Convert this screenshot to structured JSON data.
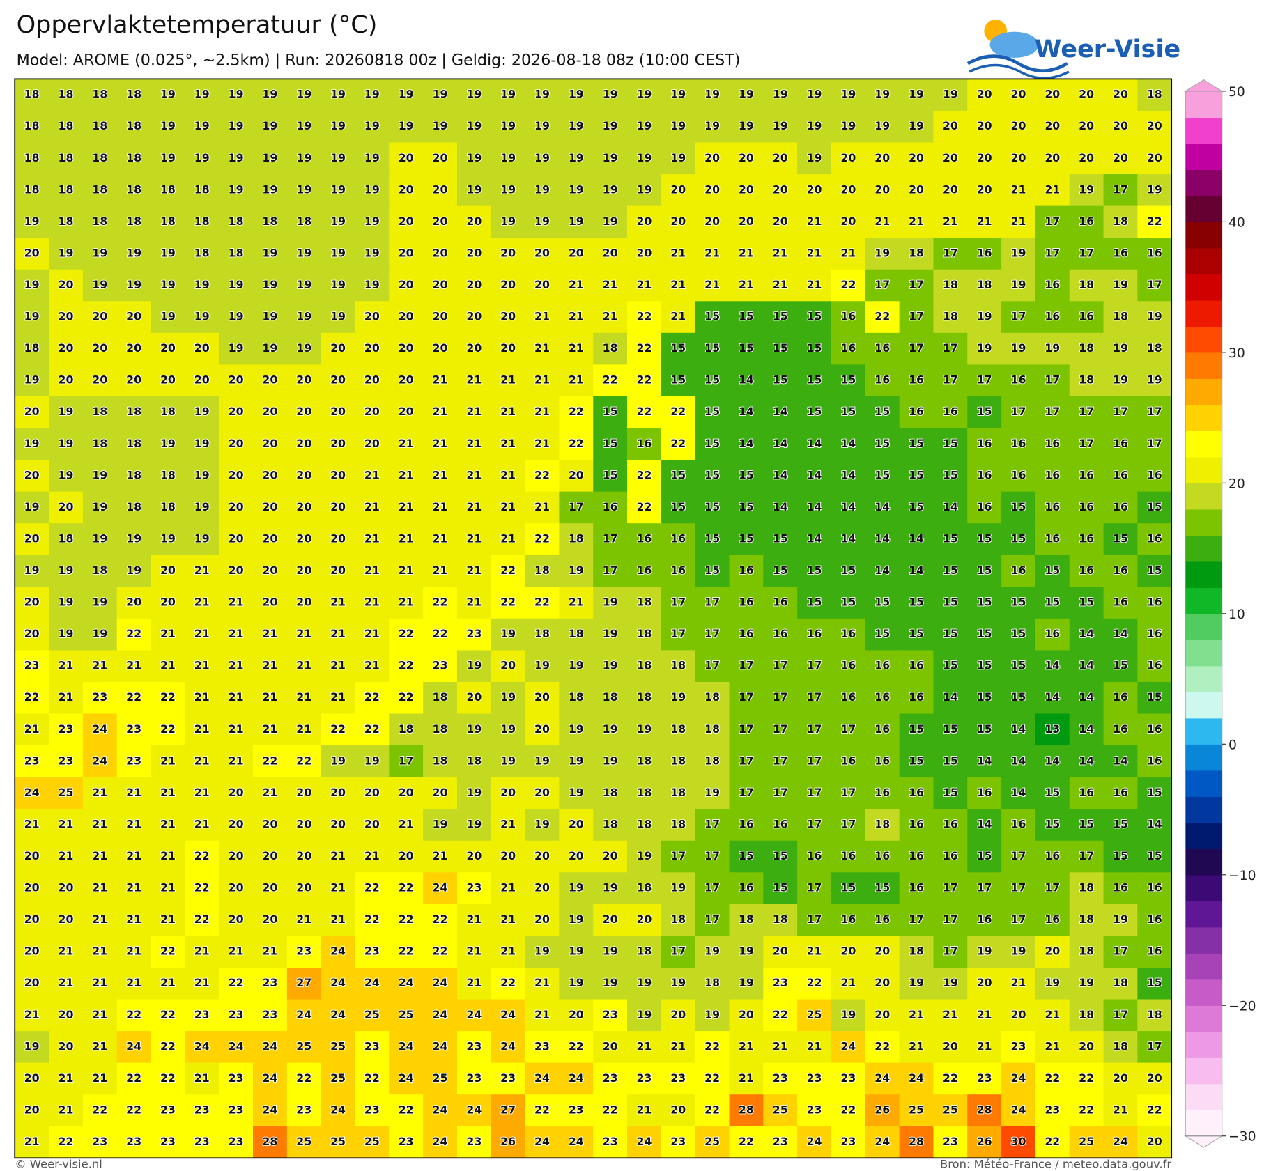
{
  "header": {
    "title": "Oppervlaktetemperatuur (°C)",
    "subtitle": "Model: AROME (0.025°, ~2.5km)  |  Run: 20260818 00z  |  Geldig: 2026-08-18 08z (10:00 CEST)",
    "logo": "Weer-Visie"
  },
  "grid": {
    "rows": [
      [
        18,
        18,
        18,
        18,
        19,
        19,
        19,
        19,
        19,
        19,
        19,
        19,
        19,
        19,
        19,
        19,
        19,
        19,
        19,
        19,
        19,
        19,
        19,
        19,
        19,
        19,
        19,
        19,
        20,
        20,
        20,
        20,
        20,
        18
      ],
      [
        18,
        18,
        18,
        18,
        19,
        19,
        19,
        19,
        19,
        19,
        19,
        19,
        19,
        19,
        19,
        19,
        19,
        19,
        19,
        19,
        19,
        19,
        19,
        19,
        19,
        19,
        19,
        20,
        20,
        20,
        20,
        20,
        20,
        20
      ],
      [
        18,
        18,
        18,
        18,
        19,
        19,
        19,
        19,
        19,
        19,
        19,
        20,
        20,
        19,
        19,
        19,
        19,
        19,
        19,
        19,
        20,
        20,
        20,
        19,
        20,
        20,
        20,
        20,
        20,
        20,
        20,
        20,
        20,
        20
      ],
      [
        18,
        18,
        18,
        18,
        18,
        18,
        19,
        19,
        19,
        19,
        19,
        20,
        20,
        19,
        19,
        19,
        19,
        19,
        19,
        20,
        20,
        20,
        20,
        20,
        20,
        20,
        20,
        20,
        20,
        21,
        21,
        19,
        17,
        19
      ],
      [
        19,
        18,
        18,
        18,
        18,
        18,
        18,
        18,
        18,
        19,
        19,
        20,
        20,
        20,
        19,
        19,
        19,
        19,
        20,
        20,
        20,
        20,
        20,
        21,
        20,
        21,
        21,
        21,
        21,
        21,
        17,
        16,
        18,
        22
      ],
      [
        20,
        19,
        19,
        19,
        19,
        18,
        18,
        19,
        19,
        19,
        19,
        20,
        20,
        20,
        20,
        20,
        20,
        20,
        20,
        21,
        21,
        21,
        21,
        21,
        21,
        19,
        18,
        17,
        16,
        19,
        17,
        17,
        16,
        16
      ],
      [
        19,
        20,
        19,
        19,
        19,
        19,
        19,
        19,
        19,
        19,
        19,
        20,
        20,
        20,
        20,
        20,
        21,
        21,
        21,
        21,
        21,
        21,
        21,
        21,
        22,
        17,
        17,
        18,
        18,
        19,
        16,
        18,
        19,
        17
      ],
      [
        19,
        20,
        20,
        20,
        19,
        19,
        19,
        19,
        19,
        19,
        20,
        20,
        20,
        20,
        20,
        21,
        21,
        21,
        22,
        21,
        15,
        15,
        15,
        15,
        16,
        22,
        17,
        18,
        19,
        17,
        16,
        16,
        18,
        19
      ],
      [
        18,
        20,
        20,
        20,
        20,
        20,
        19,
        19,
        19,
        20,
        20,
        20,
        20,
        20,
        20,
        21,
        21,
        18,
        22,
        15,
        15,
        15,
        15,
        15,
        16,
        16,
        17,
        17,
        19,
        19,
        19,
        18,
        19,
        18
      ],
      [
        19,
        20,
        20,
        20,
        20,
        20,
        20,
        20,
        20,
        20,
        20,
        20,
        21,
        21,
        21,
        21,
        21,
        22,
        22,
        15,
        15,
        14,
        15,
        15,
        15,
        16,
        16,
        17,
        17,
        16,
        17,
        18,
        19,
        19
      ],
      [
        20,
        19,
        18,
        18,
        18,
        19,
        20,
        20,
        20,
        20,
        20,
        20,
        21,
        21,
        21,
        21,
        22,
        15,
        22,
        22,
        15,
        14,
        14,
        15,
        15,
        15,
        16,
        16,
        15,
        17,
        17,
        17,
        17,
        17
      ],
      [
        19,
        19,
        18,
        18,
        19,
        19,
        20,
        20,
        20,
        20,
        20,
        21,
        21,
        21,
        21,
        21,
        22,
        15,
        16,
        22,
        15,
        14,
        14,
        14,
        14,
        15,
        15,
        15,
        16,
        16,
        16,
        17,
        16,
        17
      ],
      [
        20,
        19,
        19,
        18,
        18,
        19,
        20,
        20,
        20,
        20,
        21,
        21,
        21,
        21,
        21,
        22,
        20,
        15,
        22,
        15,
        15,
        15,
        14,
        14,
        14,
        15,
        15,
        15,
        16,
        16,
        16,
        16,
        16,
        16
      ],
      [
        19,
        20,
        19,
        18,
        18,
        19,
        20,
        20,
        20,
        20,
        21,
        21,
        21,
        21,
        21,
        21,
        17,
        16,
        22,
        15,
        15,
        15,
        14,
        14,
        14,
        14,
        15,
        14,
        16,
        15,
        16,
        16,
        16,
        15
      ],
      [
        20,
        18,
        19,
        19,
        19,
        19,
        20,
        20,
        20,
        20,
        21,
        21,
        21,
        21,
        21,
        22,
        18,
        17,
        16,
        16,
        15,
        15,
        15,
        14,
        14,
        14,
        14,
        15,
        15,
        15,
        16,
        16,
        15,
        16
      ],
      [
        19,
        19,
        18,
        19,
        20,
        21,
        20,
        20,
        20,
        20,
        21,
        21,
        21,
        21,
        22,
        18,
        19,
        17,
        16,
        16,
        15,
        16,
        15,
        15,
        15,
        14,
        14,
        15,
        15,
        16,
        15,
        16,
        16,
        15
      ],
      [
        20,
        19,
        19,
        20,
        20,
        21,
        21,
        20,
        20,
        21,
        21,
        21,
        22,
        21,
        22,
        22,
        21,
        19,
        18,
        17,
        17,
        16,
        16,
        15,
        15,
        15,
        15,
        15,
        15,
        15,
        15,
        15,
        16,
        16
      ],
      [
        20,
        19,
        19,
        22,
        21,
        21,
        21,
        21,
        21,
        21,
        21,
        22,
        22,
        23,
        19,
        18,
        18,
        19,
        18,
        17,
        17,
        16,
        16,
        16,
        16,
        15,
        15,
        15,
        15,
        15,
        16,
        14,
        14,
        16
      ],
      [
        23,
        21,
        21,
        21,
        21,
        21,
        21,
        21,
        21,
        21,
        21,
        22,
        23,
        19,
        20,
        19,
        19,
        19,
        18,
        18,
        17,
        17,
        17,
        17,
        16,
        16,
        16,
        15,
        15,
        15,
        14,
        14,
        15,
        16
      ],
      [
        22,
        21,
        23,
        22,
        22,
        21,
        21,
        21,
        21,
        21,
        22,
        22,
        18,
        20,
        19,
        20,
        18,
        18,
        18,
        19,
        18,
        17,
        17,
        17,
        16,
        16,
        16,
        14,
        15,
        15,
        14,
        14,
        16,
        15
      ],
      [
        21,
        23,
        24,
        23,
        22,
        21,
        21,
        21,
        21,
        22,
        22,
        18,
        18,
        19,
        19,
        20,
        19,
        19,
        19,
        18,
        18,
        17,
        17,
        17,
        17,
        16,
        15,
        15,
        15,
        14,
        13,
        14,
        16,
        16
      ],
      [
        23,
        23,
        24,
        23,
        21,
        21,
        21,
        22,
        22,
        19,
        19,
        17,
        18,
        18,
        19,
        19,
        19,
        19,
        18,
        18,
        18,
        17,
        17,
        17,
        16,
        16,
        15,
        15,
        14,
        14,
        14,
        14,
        14,
        16
      ],
      [
        24,
        25,
        21,
        21,
        21,
        21,
        20,
        21,
        20,
        20,
        20,
        20,
        20,
        19,
        20,
        20,
        19,
        18,
        18,
        18,
        19,
        17,
        17,
        17,
        17,
        16,
        16,
        15,
        16,
        14,
        15,
        16,
        16,
        15
      ],
      [
        21,
        21,
        21,
        21,
        21,
        21,
        20,
        20,
        20,
        20,
        20,
        21,
        19,
        19,
        21,
        19,
        20,
        18,
        18,
        18,
        17,
        16,
        16,
        17,
        17,
        18,
        16,
        16,
        14,
        16,
        15,
        15,
        15,
        14
      ],
      [
        20,
        21,
        21,
        21,
        21,
        22,
        20,
        20,
        20,
        21,
        21,
        20,
        21,
        20,
        20,
        20,
        20,
        20,
        19,
        17,
        17,
        15,
        15,
        16,
        16,
        16,
        16,
        16,
        15,
        17,
        16,
        17,
        15,
        15
      ],
      [
        20,
        20,
        21,
        21,
        21,
        22,
        20,
        20,
        20,
        21,
        22,
        22,
        24,
        23,
        21,
        20,
        19,
        19,
        18,
        19,
        17,
        16,
        15,
        17,
        15,
        15,
        16,
        17,
        17,
        17,
        17,
        18,
        16,
        16
      ],
      [
        20,
        20,
        21,
        21,
        21,
        22,
        20,
        20,
        21,
        21,
        22,
        22,
        22,
        21,
        21,
        20,
        19,
        20,
        20,
        18,
        17,
        18,
        18,
        17,
        16,
        16,
        17,
        17,
        16,
        17,
        16,
        18,
        19,
        16
      ],
      [
        20,
        21,
        21,
        21,
        22,
        21,
        21,
        21,
        23,
        24,
        23,
        22,
        22,
        21,
        21,
        19,
        19,
        19,
        18,
        17,
        19,
        19,
        20,
        21,
        20,
        20,
        18,
        17,
        19,
        19,
        20,
        18,
        17,
        16
      ],
      [
        20,
        21,
        21,
        21,
        21,
        21,
        22,
        23,
        27,
        24,
        24,
        24,
        24,
        21,
        22,
        21,
        19,
        19,
        19,
        19,
        18,
        19,
        23,
        22,
        21,
        20,
        19,
        19,
        20,
        21,
        19,
        19,
        18,
        15
      ],
      [
        21,
        20,
        21,
        22,
        22,
        23,
        23,
        23,
        24,
        24,
        25,
        25,
        24,
        24,
        24,
        21,
        20,
        23,
        19,
        20,
        19,
        20,
        22,
        25,
        19,
        20,
        21,
        21,
        21,
        20,
        21,
        18,
        17,
        18
      ],
      [
        19,
        20,
        21,
        24,
        22,
        24,
        24,
        24,
        25,
        25,
        23,
        24,
        24,
        23,
        24,
        23,
        22,
        20,
        21,
        21,
        22,
        21,
        21,
        21,
        24,
        22,
        21,
        20,
        21,
        23,
        21,
        20,
        18,
        17
      ],
      [
        20,
        21,
        21,
        22,
        22,
        21,
        23,
        24,
        22,
        25,
        22,
        24,
        25,
        23,
        23,
        24,
        24,
        23,
        23,
        23,
        22,
        21,
        23,
        23,
        23,
        24,
        24,
        22,
        23,
        24,
        22,
        22,
        20,
        20
      ],
      [
        20,
        21,
        22,
        22,
        23,
        23,
        23,
        24,
        23,
        24,
        23,
        22,
        24,
        24,
        27,
        22,
        23,
        22,
        21,
        20,
        22,
        28,
        25,
        23,
        22,
        26,
        25,
        25,
        28,
        24,
        23,
        22,
        21,
        22
      ],
      [
        21,
        22,
        23,
        23,
        23,
        23,
        23,
        28,
        25,
        25,
        25,
        23,
        24,
        23,
        26,
        24,
        24,
        23,
        24,
        23,
        25,
        22,
        23,
        24,
        23,
        24,
        28,
        23,
        26,
        30,
        22,
        25,
        24,
        20
      ]
    ]
  },
  "colorbar": {
    "lim": [
      -30,
      50
    ],
    "ticks": [
      {
        "value": -30,
        "label": "−30"
      },
      {
        "value": -20,
        "label": "−20"
      },
      {
        "value": -10,
        "label": "−10"
      },
      0,
      10,
      20,
      30,
      40,
      50
    ],
    "colors": [
      "#fff0fc",
      "#fcdcf5",
      "#f8bdee",
      "#ee99e6",
      "#dd7ad8",
      "#c75cc8",
      "#a843b7",
      "#8530a6",
      "#5f1796",
      "#3c0a75",
      "#200852",
      "#001a70",
      "#0038a0",
      "#0058c4",
      "#0a86d8",
      "#2eb8f0",
      "#ccf8f0",
      "#b0f0c0",
      "#80e090",
      "#50cc60",
      "#10b828",
      "#009a10",
      "#3cae10",
      "#7cc400",
      "#c4da20",
      "#eef000",
      "#ffff00",
      "#ffd200",
      "#ffaa00",
      "#ff7a00",
      "#ff4a00",
      "#ee1a00",
      "#d00000",
      "#aa0000",
      "#880000",
      "#660030",
      "#8a0066",
      "#c000a0",
      "#f040cc",
      "#f8a0dc"
    ]
  },
  "footer": {
    "left": "© Weer-visie.nl",
    "right": "Bron: Météo-France / meteo.data.gouv.fr"
  }
}
